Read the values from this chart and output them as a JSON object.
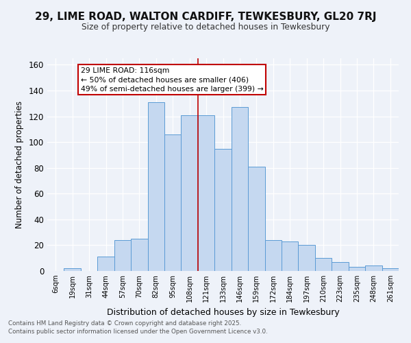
{
  "title": "29, LIME ROAD, WALTON CARDIFF, TEWKESBURY, GL20 7RJ",
  "subtitle": "Size of property relative to detached houses in Tewkesbury",
  "xlabel": "Distribution of detached houses by size in Tewkesbury",
  "ylabel": "Number of detached properties",
  "categories": [
    "6sqm",
    "19sqm",
    "31sqm",
    "44sqm",
    "57sqm",
    "70sqm",
    "82sqm",
    "95sqm",
    "108sqm",
    "121sqm",
    "133sqm",
    "146sqm",
    "159sqm",
    "172sqm",
    "184sqm",
    "197sqm",
    "210sqm",
    "223sqm",
    "235sqm",
    "248sqm",
    "261sqm"
  ],
  "values": [
    0,
    2,
    0,
    11,
    24,
    25,
    131,
    106,
    121,
    121,
    95,
    127,
    81,
    24,
    23,
    20,
    10,
    7,
    3,
    4,
    2
  ],
  "bar_color": "#c5d8f0",
  "bar_edge_color": "#5b9bd5",
  "vline_x": 8.5,
  "vline_color": "#c00000",
  "annotation_title": "29 LIME ROAD: 116sqm",
  "annotation_line1": "← 50% of detached houses are smaller (406)",
  "annotation_line2": "49% of semi-detached houses are larger (399) →",
  "annot_box_color": "#ffffff",
  "annot_box_edge": "#c00000",
  "ylim": [
    0,
    165
  ],
  "yticks": [
    0,
    20,
    40,
    60,
    80,
    100,
    120,
    140,
    160
  ],
  "bg_color": "#eef2f9",
  "grid_color": "#ffffff",
  "footer1": "Contains HM Land Registry data © Crown copyright and database right 2025.",
  "footer2": "Contains public sector information licensed under the Open Government Licence v3.0."
}
